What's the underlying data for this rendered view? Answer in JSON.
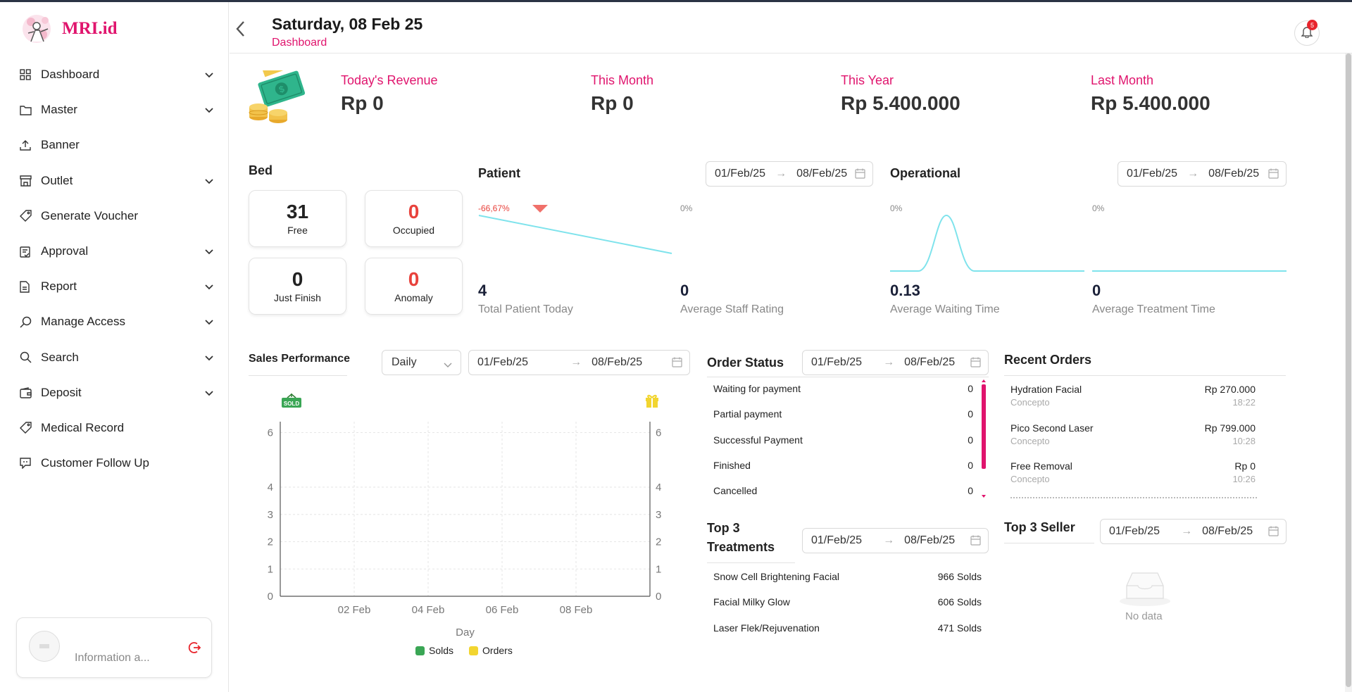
{
  "app": {
    "name": "MRI.id"
  },
  "sidebar": {
    "items": [
      {
        "label": "Dashboard",
        "icon": "grid-icon",
        "has_chevron": true
      },
      {
        "label": "Master",
        "icon": "folder-icon",
        "has_chevron": true
      },
      {
        "label": "Banner",
        "icon": "upload-icon",
        "has_chevron": false
      },
      {
        "label": "Outlet",
        "icon": "store-icon",
        "has_chevron": true
      },
      {
        "label": "Generate Voucher",
        "icon": "tag-icon",
        "has_chevron": false
      },
      {
        "label": "Approval",
        "icon": "clipboard-check-icon",
        "has_chevron": true
      },
      {
        "label": "Report",
        "icon": "document-icon",
        "has_chevron": true
      },
      {
        "label": "Manage Access",
        "icon": "key-search-icon",
        "has_chevron": true
      },
      {
        "label": "Search",
        "icon": "search-icon",
        "has_chevron": true
      },
      {
        "label": "Deposit",
        "icon": "wallet-icon",
        "has_chevron": true
      },
      {
        "label": "Medical Record",
        "icon": "tag-icon",
        "has_chevron": false
      },
      {
        "label": "Customer Follow Up",
        "icon": "chat-icon",
        "has_chevron": false
      }
    ],
    "info_text": "Information a..."
  },
  "header": {
    "date": "Saturday, 08 Feb 25",
    "breadcrumb": "Dashboard",
    "notification_count": "5"
  },
  "revenue": [
    {
      "label": "Today's Revenue",
      "value": "Rp 0"
    },
    {
      "label": "This Month",
      "value": "Rp 0"
    },
    {
      "label": "This Year",
      "value": "Rp 5.400.000"
    },
    {
      "label": "Last Month",
      "value": "Rp 5.400.000"
    }
  ],
  "bed": {
    "title": "Bed",
    "cards": [
      {
        "value": "31",
        "label": "Free",
        "color": "#1a2038"
      },
      {
        "value": "0",
        "label": "Occupied",
        "color": "#e8423c"
      },
      {
        "value": "0",
        "label": "Just Finish",
        "color": "#1a2038"
      },
      {
        "value": "0",
        "label": "Anomaly",
        "color": "#e8423c"
      }
    ]
  },
  "patient": {
    "title": "Patient",
    "date_from": "01/Feb/25",
    "date_to": "08/Feb/25",
    "stats": [
      {
        "pct": "-66,67%",
        "value": "4",
        "label": "Total Patient Today"
      },
      {
        "pct": "0%",
        "value": "0",
        "label": "Average Staff Rating"
      }
    ]
  },
  "operational": {
    "title": "Operational",
    "date_from": "01/Feb/25",
    "date_to": "08/Feb/25",
    "stats": [
      {
        "pct": "0%",
        "value": "0.13",
        "label": "Average Waiting Time"
      },
      {
        "pct": "0%",
        "value": "0",
        "label": "Average Treatment Time"
      }
    ]
  },
  "sales": {
    "title": "Sales Performance",
    "period": "Daily",
    "date_from": "01/Feb/25",
    "date_to": "08/Feb/25",
    "legend": [
      "Solds",
      "Orders"
    ],
    "sold_badge": "SOLD"
  },
  "chart_data": {
    "type": "line",
    "xlabel": "Day",
    "x_ticks": [
      "02 Feb",
      "04 Feb",
      "06 Feb",
      "08 Feb"
    ],
    "y_ticks_left": [
      "0",
      "1",
      "2",
      "3",
      "4",
      "6"
    ],
    "y_ticks_right": [
      "0",
      "1",
      "2",
      "3",
      "4",
      "6"
    ],
    "series": [
      {
        "name": "Solds",
        "values": [],
        "color": "#3aa655"
      },
      {
        "name": "Orders",
        "values": [],
        "color": "#f2d530"
      }
    ],
    "grid": true,
    "legend_position": "bottom"
  },
  "order_status": {
    "title": "Order Status",
    "date_from": "01/Feb/25",
    "date_to": "08/Feb/25",
    "rows": [
      {
        "label": "Waiting for payment",
        "value": "0"
      },
      {
        "label": "Partial payment",
        "value": "0"
      },
      {
        "label": "Successful Payment",
        "value": "0"
      },
      {
        "label": "Finished",
        "value": "0"
      },
      {
        "label": "Cancelled",
        "value": "0"
      }
    ]
  },
  "recent_orders": {
    "title": "Recent Orders",
    "rows": [
      {
        "name": "Hydration Facial",
        "outlet": "Concepto",
        "price": "Rp 270.000",
        "time": "18:22"
      },
      {
        "name": "Pico Second Laser",
        "outlet": "Concepto",
        "price": "Rp 799.000",
        "time": "10:28"
      },
      {
        "name": "Free Removal",
        "outlet": "Concepto",
        "price": "Rp 0",
        "time": "10:26"
      }
    ]
  },
  "top_treatments": {
    "title_line1": "Top 3",
    "title_line2": "Treatments",
    "date_from": "01/Feb/25",
    "date_to": "08/Feb/25",
    "rows": [
      {
        "name": "Snow Cell Brightening Facial",
        "value": "966 Solds"
      },
      {
        "name": "Facial Milky Glow",
        "value": "606 Solds"
      },
      {
        "name": "Laser Flek/Rejuvenation",
        "value": "471 Solds"
      }
    ]
  },
  "top_seller": {
    "title": "Top 3 Seller",
    "date_from": "01/Feb/25",
    "date_to": "08/Feb/25",
    "empty_text": "No data"
  }
}
